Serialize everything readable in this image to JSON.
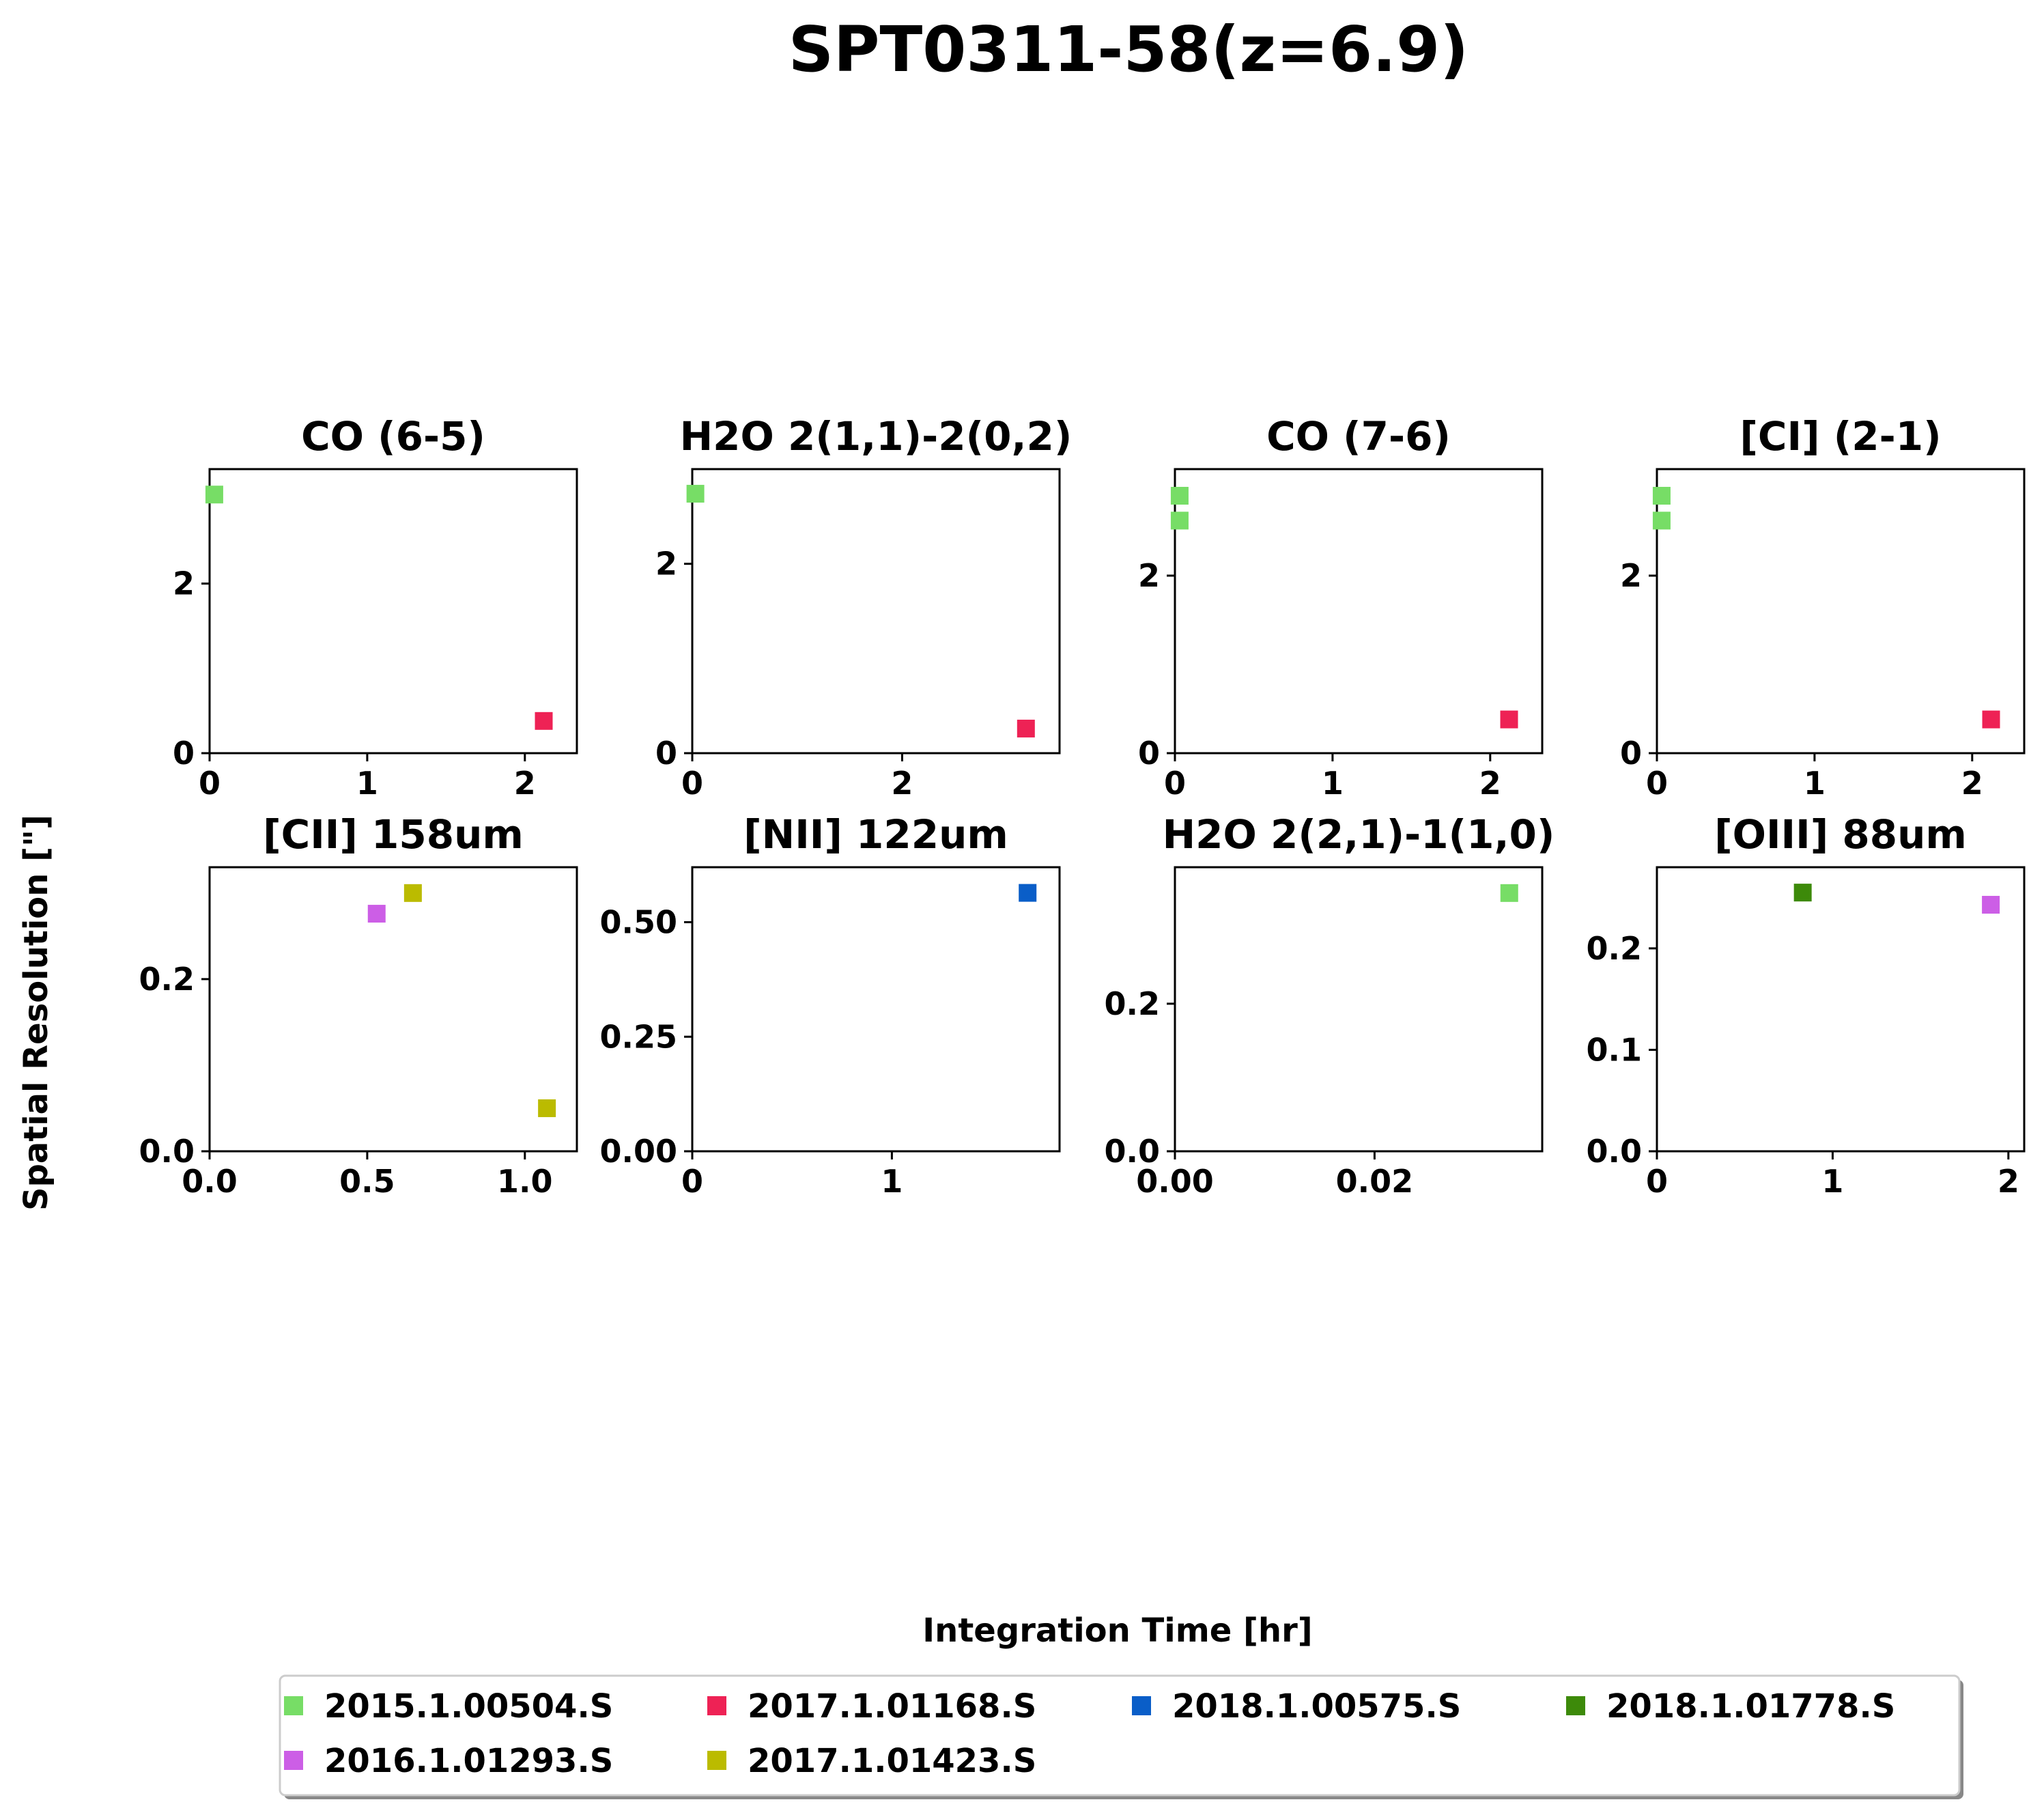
{
  "figure": {
    "title": "SPT0311-58(z=6.9)",
    "xlabel": "Integration Time [hr]",
    "ylabel": "Spatial Resolution [\"]"
  },
  "legend": [
    {
      "name": "2015.1.00504.S",
      "color": "#77dd66"
    },
    {
      "name": "2017.1.01168.S",
      "color": "#ee2255"
    },
    {
      "name": "2018.1.00575.S",
      "color": "#0a5ec8"
    },
    {
      "name": "2018.1.01778.S",
      "color": "#3d8a0a"
    },
    {
      "name": "2016.1.01293.S",
      "color": "#cc5ee6"
    },
    {
      "name": "2017.1.01423.S",
      "color": "#bbbb00"
    }
  ],
  "chart_data": [
    {
      "type": "scatter",
      "title": "CO (6-5)",
      "xlim": [
        0,
        2.33
      ],
      "ylim": [
        0,
        3.35
      ],
      "xticks": [
        {
          "v": 0,
          "label": "0"
        },
        {
          "v": 1,
          "label": "1"
        },
        {
          "v": 2,
          "label": "2"
        }
      ],
      "yticks": [
        {
          "v": 0,
          "label": "0"
        },
        {
          "v": 2,
          "label": "2"
        }
      ],
      "points": [
        {
          "x": 0.03,
          "y": 3.05,
          "series": "2015.1.00504.S"
        },
        {
          "x": 2.12,
          "y": 0.38,
          "series": "2017.1.01168.S"
        }
      ]
    },
    {
      "type": "scatter",
      "title": "H2O 2(1,1)-2(0,2)",
      "xlim": [
        0,
        3.5
      ],
      "ylim": [
        0,
        3.0
      ],
      "xticks": [
        {
          "v": 0,
          "label": "0"
        },
        {
          "v": 2,
          "label": "2"
        }
      ],
      "yticks": [
        {
          "v": 0,
          "label": "0"
        },
        {
          "v": 2,
          "label": "2"
        }
      ],
      "points": [
        {
          "x": 0.03,
          "y": 2.74,
          "series": "2015.1.00504.S"
        },
        {
          "x": 3.18,
          "y": 0.26,
          "series": "2017.1.01168.S"
        }
      ]
    },
    {
      "type": "scatter",
      "title": "CO (7-6)",
      "xlim": [
        0,
        2.33
      ],
      "ylim": [
        0,
        3.2
      ],
      "xticks": [
        {
          "v": 0,
          "label": "0"
        },
        {
          "v": 1,
          "label": "1"
        },
        {
          "v": 2,
          "label": "2"
        }
      ],
      "yticks": [
        {
          "v": 0,
          "label": "0"
        },
        {
          "v": 2,
          "label": "2"
        }
      ],
      "points": [
        {
          "x": 0.03,
          "y": 2.9,
          "series": "2015.1.00504.S"
        },
        {
          "x": 0.03,
          "y": 2.62,
          "series": "2015.1.00504.S"
        },
        {
          "x": 2.12,
          "y": 0.38,
          "series": "2017.1.01168.S"
        }
      ]
    },
    {
      "type": "scatter",
      "title": "[CI] (2-1)",
      "xlim": [
        0,
        2.33
      ],
      "ylim": [
        0,
        3.2
      ],
      "xticks": [
        {
          "v": 0,
          "label": "0"
        },
        {
          "v": 1,
          "label": "1"
        },
        {
          "v": 2,
          "label": "2"
        }
      ],
      "yticks": [
        {
          "v": 0,
          "label": "0"
        },
        {
          "v": 2,
          "label": "2"
        }
      ],
      "points": [
        {
          "x": 0.03,
          "y": 2.9,
          "series": "2015.1.00504.S"
        },
        {
          "x": 0.03,
          "y": 2.62,
          "series": "2015.1.00504.S"
        },
        {
          "x": 2.12,
          "y": 0.38,
          "series": "2017.1.01168.S"
        }
      ]
    },
    {
      "type": "scatter",
      "title": "[CII] 158um",
      "xlim": [
        0,
        1.165
      ],
      "ylim": [
        0,
        0.33
      ],
      "xticks": [
        {
          "v": 0,
          "label": "0.0"
        },
        {
          "v": 0.5,
          "label": "0.5"
        },
        {
          "v": 1.0,
          "label": "1.0"
        }
      ],
      "yticks": [
        {
          "v": 0,
          "label": "0.0"
        },
        {
          "v": 0.2,
          "label": "0.2"
        }
      ],
      "points": [
        {
          "x": 0.53,
          "y": 0.276,
          "series": "2016.1.01293.S"
        },
        {
          "x": 0.645,
          "y": 0.3,
          "series": "2017.1.01423.S"
        },
        {
          "x": 1.07,
          "y": 0.05,
          "series": "2017.1.01423.S"
        }
      ]
    },
    {
      "type": "scatter",
      "title": "[NII] 122um",
      "xlim": [
        0,
        1.84
      ],
      "ylim": [
        0,
        0.62
      ],
      "xticks": [
        {
          "v": 0,
          "label": "0"
        },
        {
          "v": 1,
          "label": "1"
        }
      ],
      "yticks": [
        {
          "v": 0,
          "label": "0.00"
        },
        {
          "v": 0.25,
          "label": "0.25"
        },
        {
          "v": 0.5,
          "label": "0.50"
        }
      ],
      "points": [
        {
          "x": 1.68,
          "y": 0.564,
          "series": "2018.1.00575.S"
        }
      ]
    },
    {
      "type": "scatter",
      "title": "H2O 2(2,1)-1(1,0)",
      "xlim": [
        0,
        0.0368
      ],
      "ylim": [
        0,
        0.385
      ],
      "xticks": [
        {
          "v": 0,
          "label": "0.00"
        },
        {
          "v": 0.02,
          "label": "0.02"
        }
      ],
      "yticks": [
        {
          "v": 0,
          "label": "0.0"
        },
        {
          "v": 0.2,
          "label": "0.2"
        }
      ],
      "points": [
        {
          "x": 0.0335,
          "y": 0.35,
          "series": "2015.1.00504.S"
        }
      ]
    },
    {
      "type": "scatter",
      "title": "[OIII] 88um",
      "xlim": [
        0,
        2.09
      ],
      "ylim": [
        0,
        0.28
      ],
      "xticks": [
        {
          "v": 0,
          "label": "0"
        },
        {
          "v": 1,
          "label": "1"
        },
        {
          "v": 2,
          "label": "2"
        }
      ],
      "yticks": [
        {
          "v": 0,
          "label": "0.0"
        },
        {
          "v": 0.1,
          "label": "0.1"
        },
        {
          "v": 0.2,
          "label": "0.2"
        }
      ],
      "points": [
        {
          "x": 0.83,
          "y": 0.255,
          "series": "2018.1.01778.S"
        },
        {
          "x": 1.9,
          "y": 0.243,
          "series": "2016.1.01293.S"
        }
      ]
    }
  ]
}
